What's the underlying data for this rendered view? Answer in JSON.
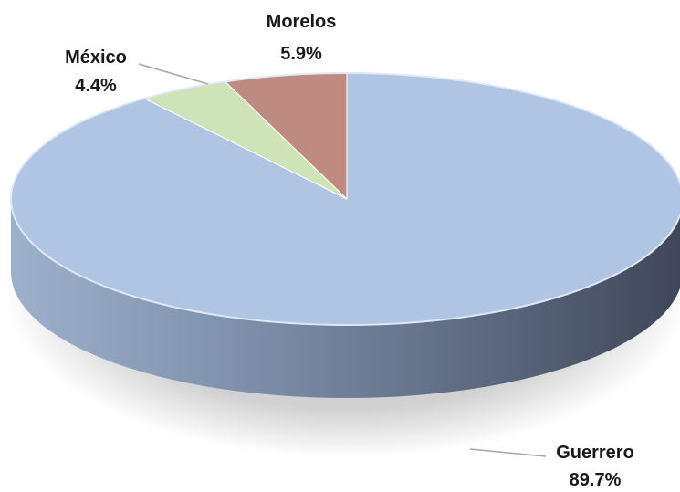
{
  "chart_data": {
    "type": "pie",
    "style": "3d",
    "title": "",
    "categories": [
      "Guerrero",
      "México",
      "Morelos"
    ],
    "values": [
      89.7,
      4.4,
      5.9
    ],
    "value_labels": [
      "89.7%",
      "4.4%",
      "5.9%"
    ],
    "colors": [
      "#b0c4e4",
      "#cfe3b8",
      "#bf8a80"
    ],
    "legend": "none",
    "start_angle": "12 o'clock",
    "direction": "clockwise"
  }
}
